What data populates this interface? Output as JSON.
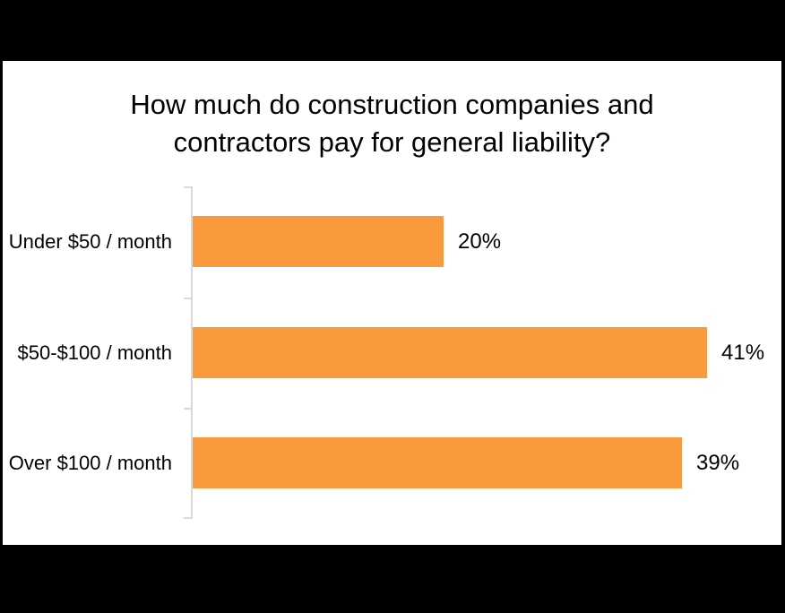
{
  "chart_data": {
    "type": "bar",
    "orientation": "horizontal",
    "title": "How much do construction companies and contractors pay for general liability?",
    "title_lines": [
      "How much do construction companies and",
      "contractors pay for general liability?"
    ],
    "categories": [
      "Under $50 / month",
      "$50-$100 / month",
      "Over $100 / month"
    ],
    "values": [
      20,
      41,
      39
    ],
    "value_labels": [
      "20%",
      "41%",
      "39%"
    ],
    "xlabel": "",
    "ylabel": "",
    "xlim": [
      0,
      46.5
    ],
    "grid": false,
    "legend": false,
    "colors": {
      "bar": "#FB9A3C",
      "axis": "#D9D9D9",
      "text": "#000000",
      "panel_background": "#FFFFFF",
      "frame_background": "#000000"
    }
  }
}
